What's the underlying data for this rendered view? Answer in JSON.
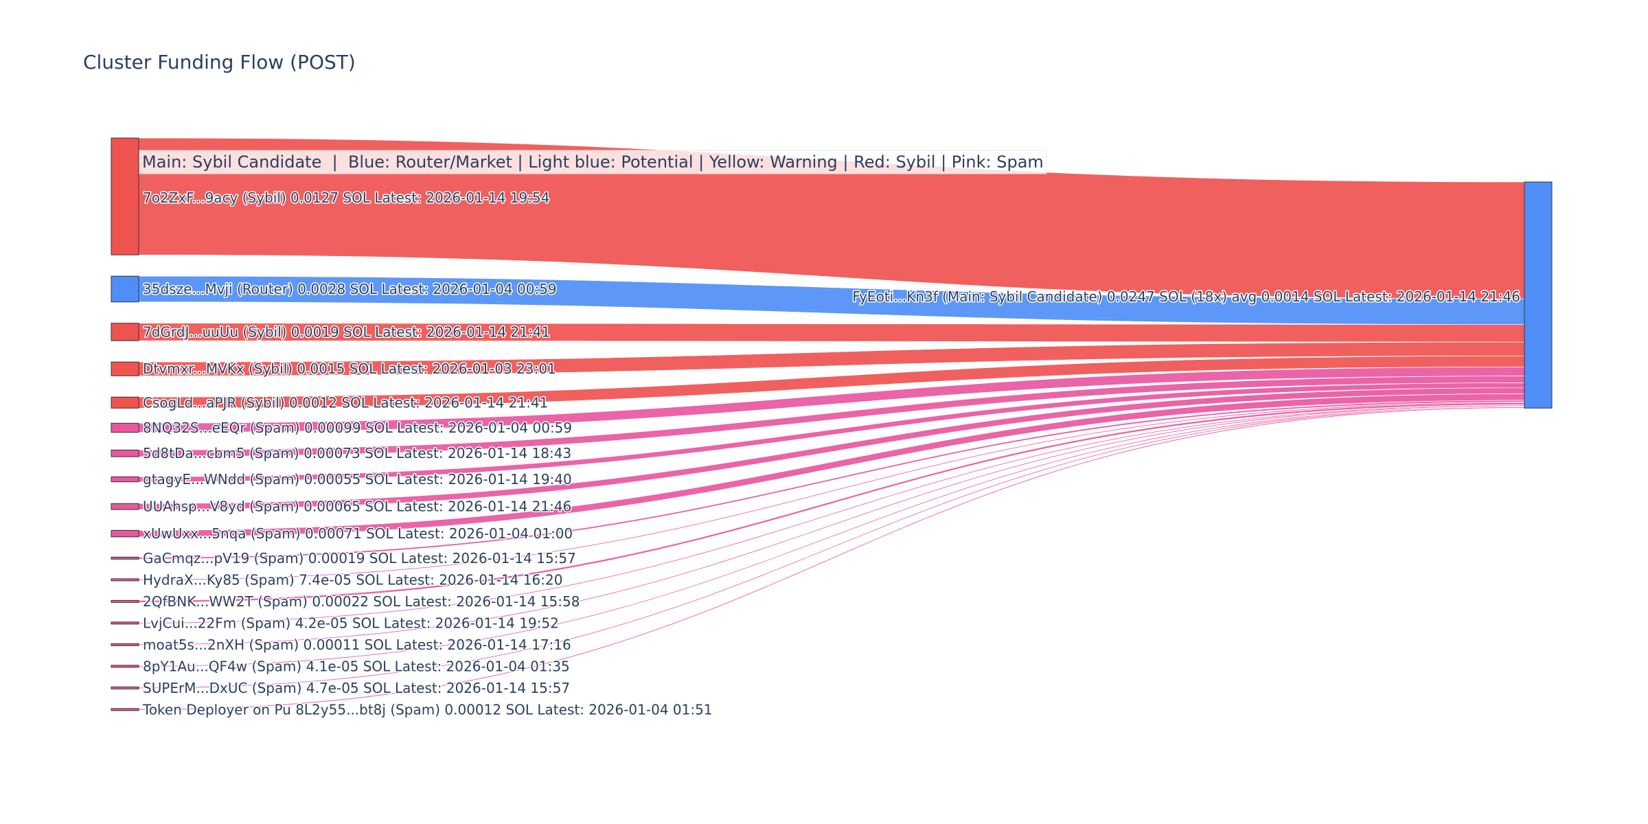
{
  "chart_data": {
    "type": "sankey",
    "title": "Cluster Funding Flow (POST)",
    "legend_annotation": "Main: Sybil Candidate  |  Blue: Router/Market | Light blue: Potential | Yellow: Warning | Red: Sybil | Pink: Spam",
    "colors": {
      "sybil": "#ef5350",
      "router": "#4f8ef7",
      "spam": "#e8579f",
      "main": "#4f8ef7",
      "link_sybil": "#ef5350",
      "link_router": "#4f8ef7",
      "link_spam": "#e8579f",
      "node_outline": "#333333"
    },
    "target": {
      "label": "FyEoti...Kn3f (Main: Sybil Candidate) 0.0247 SOL (18x) avg 0.0014 SOL Latest: 2026-01-14 21:46",
      "category": "main",
      "total_sol": 0.0247
    },
    "sources": [
      {
        "label": "7o2ZxF...9acy (Sybil) 0.0127 SOL Latest: 2026-01-14 19:54",
        "category": "sybil",
        "value": 0.0127
      },
      {
        "label": "35dsze...Mvji (Router) 0.0028 SOL Latest: 2026-01-04 00:59",
        "category": "router",
        "value": 0.0028
      },
      {
        "label": "7dGrdJ...uuUu (Sybil) 0.0019 SOL Latest: 2026-01-14 21:41",
        "category": "sybil",
        "value": 0.0019
      },
      {
        "label": "Dtvmxr...MVKx (Sybil) 0.0015 SOL Latest: 2026-01-03 23:01",
        "category": "sybil",
        "value": 0.0015
      },
      {
        "label": "CsogLd...aPJR (Sybil) 0.0012 SOL Latest: 2026-01-14 21:41",
        "category": "sybil",
        "value": 0.0012
      },
      {
        "label": "8NQ32S...eEQr (Spam) 0.00099 SOL Latest: 2026-01-04 00:59",
        "category": "spam",
        "value": 0.00099
      },
      {
        "label": "5d8tDa...cbm5 (Spam) 0.00073 SOL Latest: 2026-01-14 18:43",
        "category": "spam",
        "value": 0.00073
      },
      {
        "label": "gtagyE...WNdd (Spam) 0.00055 SOL Latest: 2026-01-14 19:40",
        "category": "spam",
        "value": 0.00055
      },
      {
        "label": "UUAhsp...V8yd (Spam) 0.00065 SOL Latest: 2026-01-14 21:46",
        "category": "spam",
        "value": 0.00065
      },
      {
        "label": "xUwUxx...5nqa (Spam) 0.00071 SOL Latest: 2026-01-04 01:00",
        "category": "spam",
        "value": 0.00071
      },
      {
        "label": "GaCmqz...pV19 (Spam) 0.00019 SOL Latest: 2026-01-14 15:57",
        "category": "spam",
        "value": 0.00019
      },
      {
        "label": "HydraX...Ky85 (Spam) 7.4e-05 SOL Latest: 2026-01-14 16:20",
        "category": "spam",
        "value": 7.4e-05
      },
      {
        "label": "2QfBNK...WW2T (Spam) 0.00022 SOL Latest: 2026-01-14 15:58",
        "category": "spam",
        "value": 0.00022
      },
      {
        "label": "LvjCui...22Fm (Spam) 4.2e-05 SOL Latest: 2026-01-14 19:52",
        "category": "spam",
        "value": 4.2e-05
      },
      {
        "label": "moat5s...2nXH (Spam) 0.00011 SOL Latest: 2026-01-14 17:16",
        "category": "spam",
        "value": 0.00011
      },
      {
        "label": "8pY1Au...QF4w (Spam) 4.1e-05 SOL Latest: 2026-01-04 01:35",
        "category": "spam",
        "value": 4.1e-05
      },
      {
        "label": "SUPErM...DxUC (Spam) 4.7e-05 SOL Latest: 2026-01-14 15:57",
        "category": "spam",
        "value": 4.7e-05
      },
      {
        "label": "Token Deployer on Pu 8L2y55...bt8j (Spam) 0.00012 SOL Latest: 2026-01-04 01:51",
        "category": "spam",
        "value": 0.00012
      }
    ]
  }
}
